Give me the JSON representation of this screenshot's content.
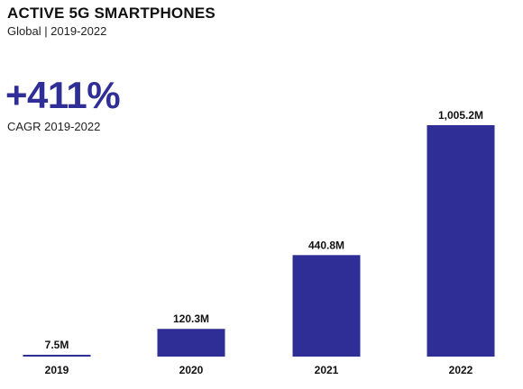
{
  "header": {
    "title": "ACTIVE 5G SMARTPHONES",
    "subtitle": "Global | 2019-2022"
  },
  "kpi": {
    "value": "+411%",
    "caption": "CAGR 2019-2022"
  },
  "colors": {
    "bar": "#2e2e96",
    "text": "#111111"
  },
  "chart_data": {
    "type": "bar",
    "title": "ACTIVE 5G SMARTPHONES",
    "subtitle": "Global | 2019-2022",
    "categories": [
      "2019",
      "2020",
      "2021",
      "2022"
    ],
    "values": [
      7.5,
      120.3,
      440.8,
      1005.2
    ],
    "value_labels": [
      "7.5M",
      "120.3M",
      "440.8M",
      "1,005.2M"
    ],
    "unit": "M",
    "xlabel": "",
    "ylabel": "",
    "ylim": [
      0,
      1005.2
    ],
    "grid": false,
    "legend": "none"
  }
}
